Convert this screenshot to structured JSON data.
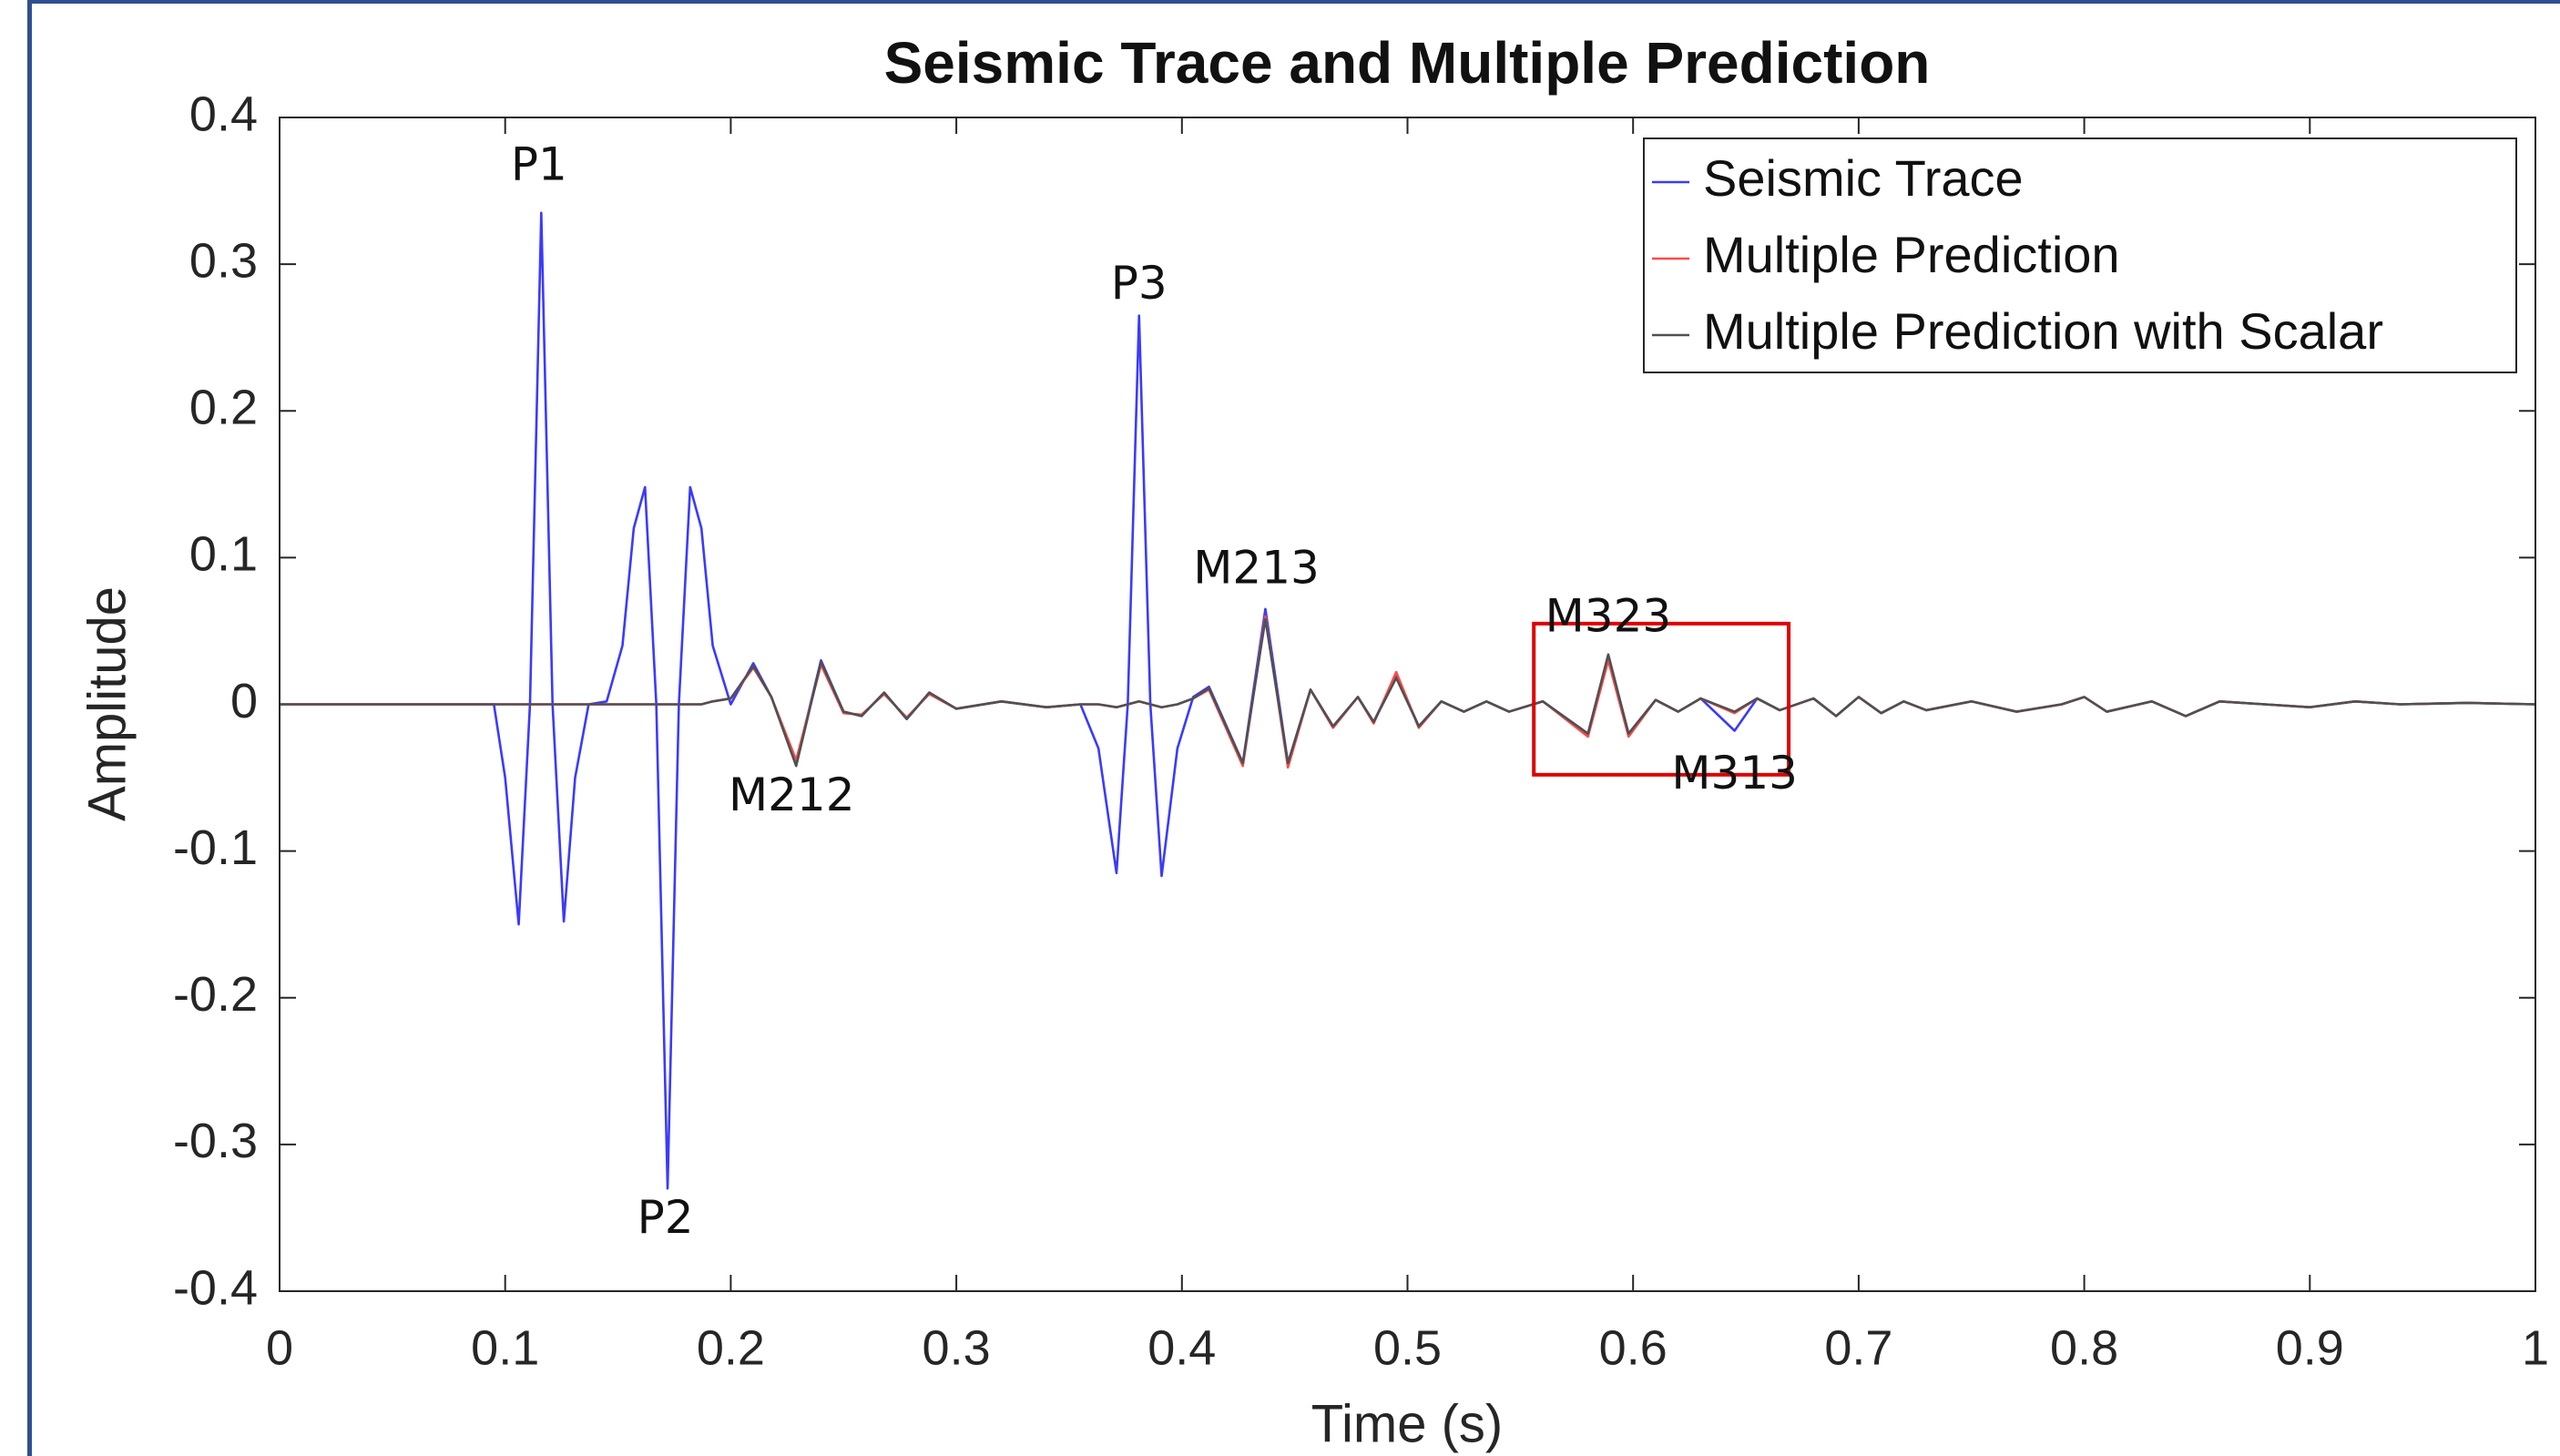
{
  "chart_data": {
    "type": "line",
    "title": "Seismic Trace and Multiple Prediction",
    "x_label": "Time (s)",
    "y_label": "Amplitude",
    "xlim": [
      0,
      1
    ],
    "ylim": [
      -0.4,
      0.4
    ],
    "xticks": [
      0,
      0.1,
      0.2,
      0.3,
      0.4,
      0.5,
      0.6,
      0.7,
      0.8,
      0.9,
      1
    ],
    "yticks": [
      -0.4,
      -0.3,
      -0.2,
      -0.1,
      0,
      0.1,
      0.2,
      0.3,
      0.4
    ],
    "grid": false,
    "legend": "upper right",
    "x": [
      0,
      0.09,
      0.095,
      0.1,
      0.106,
      0.111,
      0.116,
      0.121,
      0.126,
      0.131,
      0.137,
      0.145,
      0.152,
      0.157,
      0.162,
      0.167,
      0.172,
      0.177,
      0.182,
      0.187,
      0.192,
      0.2,
      0.21,
      0.218,
      0.229,
      0.24,
      0.25,
      0.258,
      0.268,
      0.278,
      0.288,
      0.3,
      0.32,
      0.34,
      0.355,
      0.363,
      0.371,
      0.376,
      0.381,
      0.386,
      0.391,
      0.398,
      0.405,
      0.412,
      0.427,
      0.437,
      0.447,
      0.457,
      0.467,
      0.478,
      0.485,
      0.495,
      0.505,
      0.515,
      0.525,
      0.535,
      0.545,
      0.56,
      0.58,
      0.589,
      0.598,
      0.61,
      0.62,
      0.63,
      0.645,
      0.655,
      0.665,
      0.68,
      0.69,
      0.7,
      0.71,
      0.72,
      0.73,
      0.75,
      0.77,
      0.79,
      0.8,
      0.81,
      0.83,
      0.845,
      0.86,
      0.88,
      0.9,
      0.92,
      0.94,
      0.97,
      1
    ],
    "series": [
      {
        "name": "Seismic Trace",
        "color": "#3a3aff",
        "values": [
          0,
          0,
          0,
          -0.05,
          -0.15,
          0,
          0.335,
          0,
          -0.148,
          -0.05,
          0,
          0.002,
          0.04,
          0.12,
          0.148,
          0,
          -0.33,
          0,
          0.148,
          0.12,
          0.04,
          0,
          0.028,
          0.005,
          -0.04,
          0.03,
          -0.005,
          -0.008,
          0.008,
          -0.01,
          0.008,
          -0.003,
          0.002,
          -0.002,
          0,
          -0.03,
          -0.115,
          0,
          0.265,
          0,
          -0.117,
          -0.03,
          0.005,
          0.012,
          -0.04,
          0.065,
          -0.04,
          0.01,
          -0.015,
          0.005,
          -0.012,
          0.02,
          -0.015,
          0.002,
          -0.005,
          0.002,
          -0.005,
          0.002,
          -0.02,
          0.033,
          -0.02,
          0.003,
          -0.005,
          0.004,
          -0.018,
          0.004,
          -0.004,
          0.004,
          -0.008,
          0.005,
          -0.006,
          0.002,
          -0.004,
          0.002,
          -0.005,
          0,
          0.005,
          -0.005,
          0.002,
          -0.008,
          0.002,
          0,
          -0.002,
          0.002,
          0,
          0.001,
          0
        ]
      },
      {
        "name": "Multiple Prediction",
        "color": "#ff4a4a",
        "values": [
          0,
          0,
          0,
          0,
          0,
          0,
          0,
          0,
          0,
          0,
          0,
          0,
          0,
          0,
          0,
          0,
          0,
          0,
          0,
          0,
          0.002,
          0.004,
          0.025,
          0.005,
          -0.038,
          0.027,
          -0.006,
          -0.007,
          0.007,
          -0.009,
          0.007,
          -0.003,
          0.002,
          -0.002,
          0,
          0,
          -0.002,
          0,
          0.002,
          0,
          -0.002,
          0,
          0.004,
          0.01,
          -0.042,
          0.06,
          -0.043,
          0.01,
          -0.016,
          0.005,
          -0.013,
          0.022,
          -0.016,
          0.002,
          -0.005,
          0.002,
          -0.005,
          0.002,
          -0.022,
          0.03,
          -0.022,
          0.003,
          -0.005,
          0.004,
          -0.006,
          0.004,
          -0.004,
          0.004,
          -0.008,
          0.005,
          -0.006,
          0.002,
          -0.004,
          0.002,
          -0.005,
          0,
          0.005,
          -0.005,
          0.002,
          -0.008,
          0.002,
          0,
          -0.002,
          0.002,
          0,
          0.001,
          0
        ]
      },
      {
        "name": "Multiple Prediction with Scalar",
        "color": "#505050",
        "values": [
          0,
          0,
          0,
          0,
          0,
          0,
          0,
          0,
          0,
          0,
          0,
          0,
          0,
          0,
          0,
          0,
          0,
          0,
          0,
          0,
          0.002,
          0.004,
          0.026,
          0.005,
          -0.042,
          0.029,
          -0.005,
          -0.008,
          0.008,
          -0.01,
          0.008,
          -0.003,
          0.002,
          -0.002,
          0,
          0,
          -0.002,
          0,
          0.002,
          0,
          -0.002,
          0,
          0.004,
          0.011,
          -0.04,
          0.058,
          -0.04,
          0.01,
          -0.015,
          0.005,
          -0.012,
          0.018,
          -0.015,
          0.002,
          -0.005,
          0.002,
          -0.005,
          0.002,
          -0.02,
          0.034,
          -0.02,
          0.003,
          -0.005,
          0.004,
          -0.005,
          0.004,
          -0.004,
          0.004,
          -0.008,
          0.005,
          -0.006,
          0.002,
          -0.004,
          0.002,
          -0.005,
          0,
          0.005,
          -0.005,
          0.002,
          -0.008,
          0.002,
          0,
          -0.002,
          0.002,
          0,
          0.001,
          0
        ]
      }
    ],
    "annotations": [
      {
        "text": "P1",
        "x": 0.115,
        "y": 0.366
      },
      {
        "text": "P2",
        "x": 0.171,
        "y": -0.352
      },
      {
        "text": "P3",
        "x": 0.381,
        "y": 0.285
      },
      {
        "text": "M212",
        "x": 0.227,
        "y": -0.064
      },
      {
        "text": "M213",
        "x": 0.433,
        "y": 0.091
      },
      {
        "text": "M323",
        "x": 0.589,
        "y": 0.058
      },
      {
        "text": "M313",
        "x": 0.645,
        "y": -0.049
      }
    ],
    "highlight": {
      "xlim": [
        0.556,
        0.669
      ],
      "ylim": [
        -0.048,
        0.055
      ],
      "color": "#e00000"
    }
  }
}
